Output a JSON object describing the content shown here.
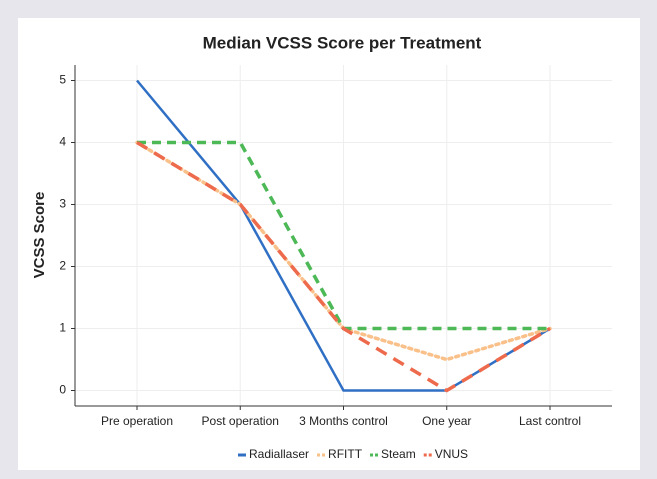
{
  "chart_data": {
    "type": "line",
    "title": "Median VCSS Score per Treatment",
    "y_label": "VCSS Score",
    "categories": [
      "Pre operation",
      "Post operation",
      "3 Months control",
      "One year",
      "Last control"
    ],
    "series": [
      {
        "name": "Radiallaser",
        "color": "#2f6fc4",
        "linestyle": "solid",
        "values": [
          5,
          3,
          0,
          0,
          1
        ]
      },
      {
        "name": "RFITT",
        "color": "#f9c08a",
        "linestyle": "dotted",
        "values": [
          4,
          3,
          1,
          0.5,
          1
        ]
      },
      {
        "name": "Steam",
        "color": "#4cb856",
        "linestyle": "dashed",
        "values": [
          4,
          4,
          1,
          1,
          1
        ]
      },
      {
        "name": "VNUS",
        "color": "#ee6a4c",
        "linestyle": "longdash",
        "values": [
          4,
          3,
          1,
          0,
          1
        ]
      }
    ],
    "ylim": [
      -0.25,
      5.25
    ],
    "yticks": [
      0,
      1,
      2,
      3,
      4,
      5
    ],
    "grid": true,
    "legend": "bottom"
  }
}
